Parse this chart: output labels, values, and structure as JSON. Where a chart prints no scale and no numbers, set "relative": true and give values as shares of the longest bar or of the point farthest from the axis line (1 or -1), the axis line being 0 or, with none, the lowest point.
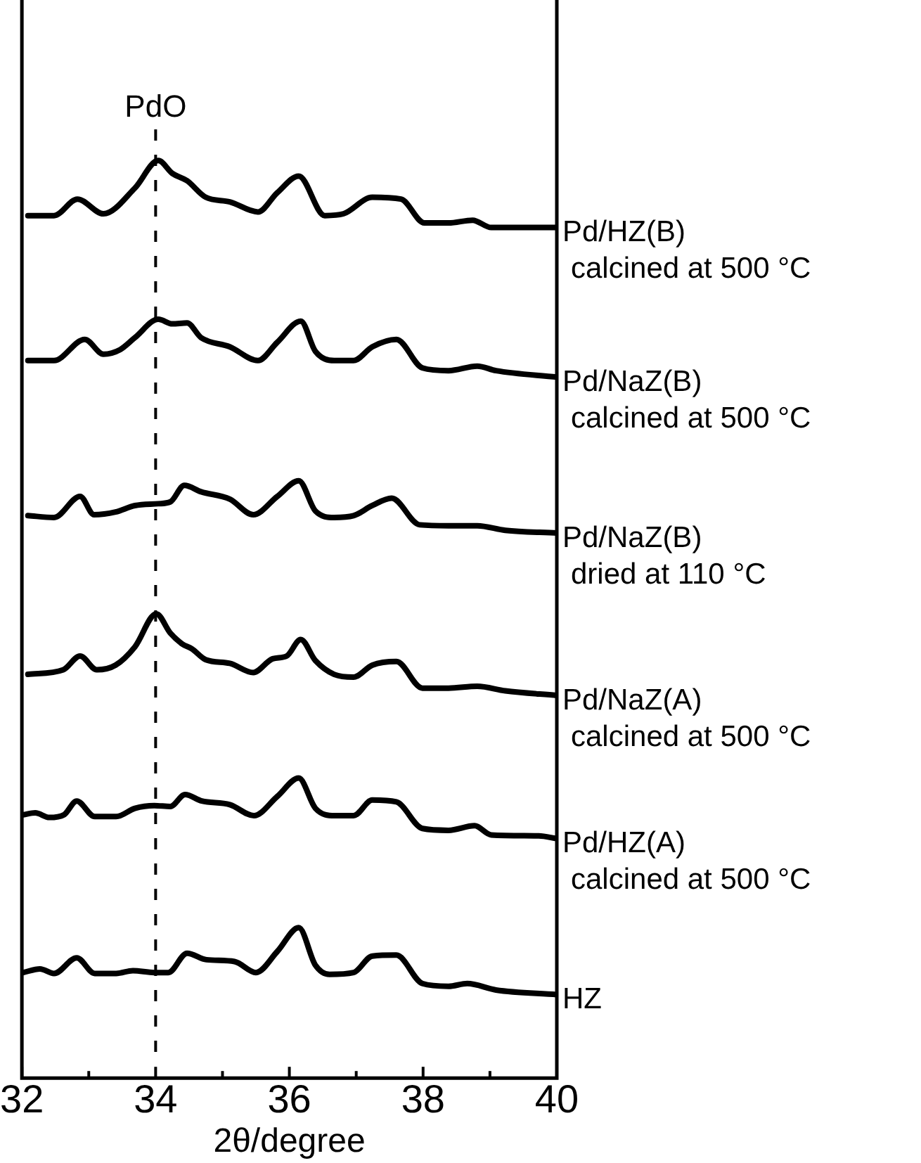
{
  "chart_data": {
    "type": "line",
    "relative": true,
    "xlabel": "2θ/degree",
    "xlim": [
      32,
      40
    ],
    "xticks": [
      32,
      {
        "value": 33,
        "label": null
      },
      34,
      {
        "value": 35,
        "label": null
      },
      36,
      {
        "value": 37,
        "label": null
      },
      38,
      {
        "value": 39,
        "label": null
      },
      40
    ],
    "grid": false,
    "legend": false,
    "marker": "none",
    "line_style": "solid",
    "tick_labels": "x",
    "ref_lines": [
      {
        "axis": "x",
        "value": 34,
        "label": "PdO",
        "line_style": "dashed",
        "color": "#000000"
      }
    ],
    "series": [
      {
        "name": "Pd/HZ(B)\ncalcined at 500 °C",
        "color": "#000000",
        "x": [
          32.09,
          32.48,
          32.83,
          33.22,
          33.69,
          34.04,
          34.25,
          34.47,
          34.75,
          35.11,
          35.53,
          35.82,
          36.14,
          36.53,
          36.81,
          37.24,
          37.67,
          38.02,
          38.38,
          38.74,
          39.02,
          40
        ],
        "values": [
          0.94,
          0.94,
          0.958,
          0.942,
          0.97,
          1,
          0.986,
          0.978,
          0.96,
          0.955,
          0.944,
          0.965,
          0.983,
          0.94,
          0.942,
          0.96,
          0.958,
          0.932,
          0.932,
          0.935,
          0.927,
          0.927
        ]
      },
      {
        "name": "Pd/NaZ(B)\ncalcined at 500 °C",
        "color": "#000000",
        "x": [
          32.09,
          32.48,
          32.94,
          33.22,
          33.47,
          33.69,
          34.04,
          34.25,
          34.47,
          34.68,
          35.11,
          35.53,
          35.82,
          36.17,
          36.39,
          36.67,
          36.96,
          37.24,
          37.6,
          37.99,
          38.38,
          38.81,
          39.09,
          40
        ],
        "values": [
          0.782,
          0.782,
          0.805,
          0.789,
          0.794,
          0.807,
          0.827,
          0.822,
          0.823,
          0.807,
          0.797,
          0.782,
          0.802,
          0.825,
          0.792,
          0.782,
          0.782,
          0.797,
          0.805,
          0.774,
          0.771,
          0.776,
          0.771,
          0.764
        ]
      },
      {
        "name": "Pd/NaZ(B)\ndried at 110 °C",
        "color": "#000000",
        "x": [
          32.09,
          32.48,
          32.87,
          33.08,
          33.4,
          33.69,
          34.04,
          34.22,
          34.43,
          34.68,
          35.11,
          35.46,
          35.82,
          36.14,
          36.39,
          36.67,
          36.96,
          37.24,
          37.53,
          37.95,
          38.38,
          38.81,
          39.23,
          40
        ],
        "values": [
          0.613,
          0.611,
          0.634,
          0.614,
          0.617,
          0.624,
          0.626,
          0.628,
          0.646,
          0.639,
          0.631,
          0.614,
          0.634,
          0.651,
          0.618,
          0.611,
          0.613,
          0.624,
          0.632,
          0.603,
          0.602,
          0.602,
          0.597,
          0.594
        ]
      },
      {
        "name": "Pd/NaZ(A)\ncalcined at 500 °C",
        "color": "#000000",
        "x": [
          32.09,
          32.62,
          32.87,
          33.12,
          33.4,
          33.69,
          34.01,
          34.22,
          34.4,
          34.54,
          34.75,
          35.11,
          35.46,
          35.75,
          35.96,
          36.17,
          36.39,
          36.67,
          36.96,
          37.24,
          37.6,
          37.99,
          38.38,
          38.81,
          39.23,
          40
        ],
        "values": [
          0.44,
          0.445,
          0.46,
          0.445,
          0.45,
          0.47,
          0.506,
          0.485,
          0.473,
          0.468,
          0.456,
          0.452,
          0.442,
          0.457,
          0.46,
          0.478,
          0.455,
          0.44,
          0.437,
          0.45,
          0.454,
          0.425,
          0.425,
          0.427,
          0.422,
          0.417
        ]
      },
      {
        "name": "Pd/HZ(A)\ncalcined at 500 °C",
        "color": "#000000",
        "x": [
          32.02,
          32.2,
          32.41,
          32.63,
          32.82,
          33.09,
          33.41,
          33.69,
          33.98,
          34.22,
          34.44,
          34.69,
          35.11,
          35.47,
          35.82,
          36.14,
          36.39,
          36.68,
          36.96,
          37.24,
          37.6,
          37.99,
          38.38,
          38.77,
          39.02,
          39.73,
          40
        ],
        "values": [
          0.287,
          0.289,
          0.284,
          0.287,
          0.302,
          0.285,
          0.285,
          0.294,
          0.297,
          0.296,
          0.309,
          0.302,
          0.298,
          0.286,
          0.307,
          0.327,
          0.294,
          0.286,
          0.286,
          0.303,
          0.301,
          0.272,
          0.27,
          0.275,
          0.265,
          0.264,
          0.261
        ]
      },
      {
        "name": "HZ",
        "color": "#000000",
        "x": [
          32.02,
          32.27,
          32.48,
          32.82,
          33.09,
          33.41,
          33.66,
          33.98,
          34.19,
          34.47,
          34.76,
          35.18,
          35.5,
          35.82,
          36.14,
          36.39,
          36.6,
          36.96,
          37.24,
          37.6,
          37.99,
          38.38,
          38.66,
          39.09,
          40
        ],
        "values": [
          0.115,
          0.119,
          0.114,
          0.131,
          0.114,
          0.114,
          0.117,
          0.115,
          0.115,
          0.136,
          0.129,
          0.127,
          0.115,
          0.138,
          0.164,
          0.123,
          0.113,
          0.115,
          0.133,
          0.134,
          0.103,
          0.1,
          0.103,
          0.096,
          0.091
        ]
      }
    ]
  }
}
